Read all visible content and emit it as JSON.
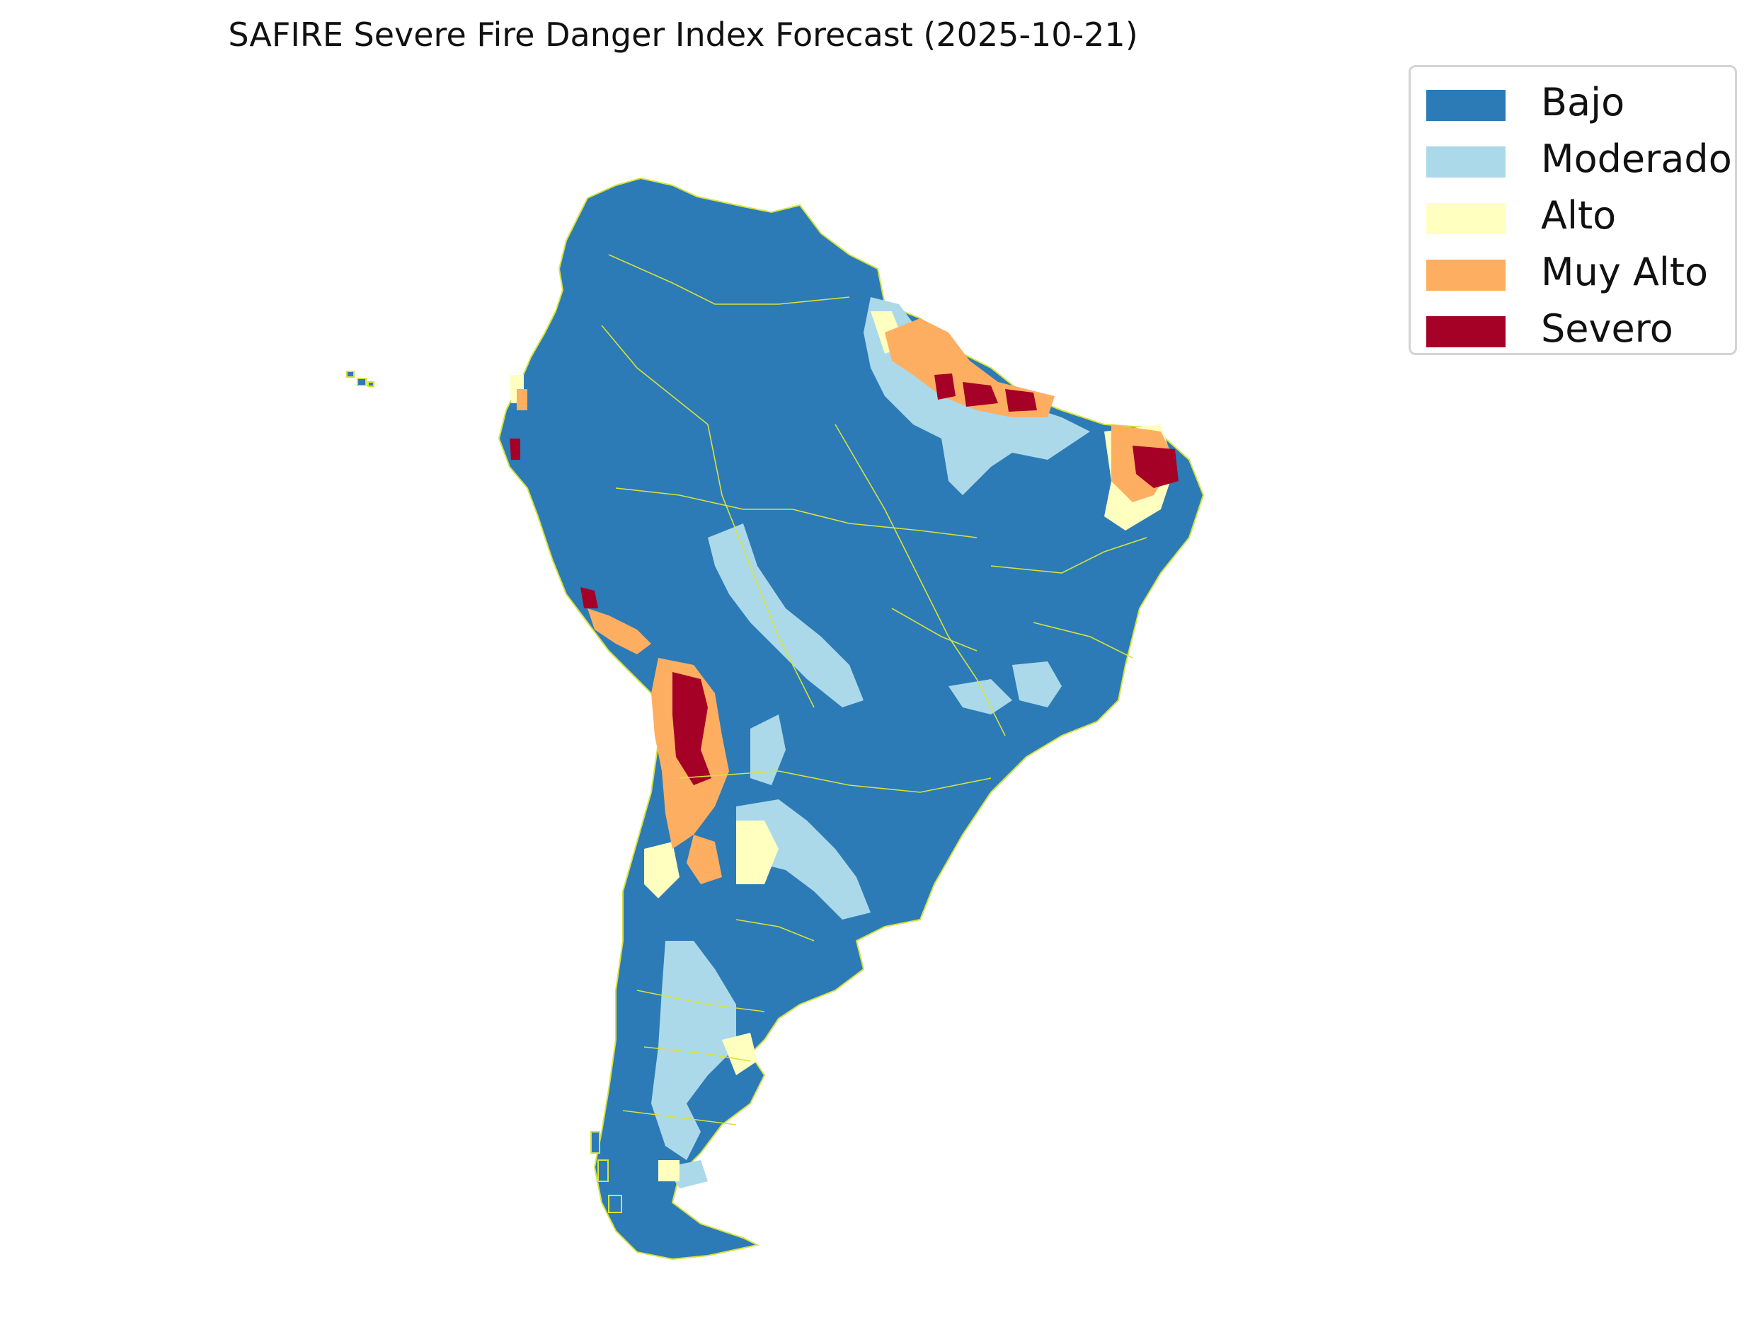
{
  "title": "SAFIRE Severe Fire Danger Index Forecast (2025-10-21)",
  "legend": {
    "items": [
      {
        "label": "Bajo",
        "color": "#2c7bb6"
      },
      {
        "label": "Moderado",
        "color": "#abd9e9"
      },
      {
        "label": "Alto",
        "color": "#ffffbf"
      },
      {
        "label": "Muy Alto",
        "color": "#fdae61"
      },
      {
        "label": "Severo",
        "color": "#a50026"
      }
    ]
  },
  "map": {
    "region": "South America",
    "border_color": "#d8e23a",
    "background": "#ffffff"
  }
}
